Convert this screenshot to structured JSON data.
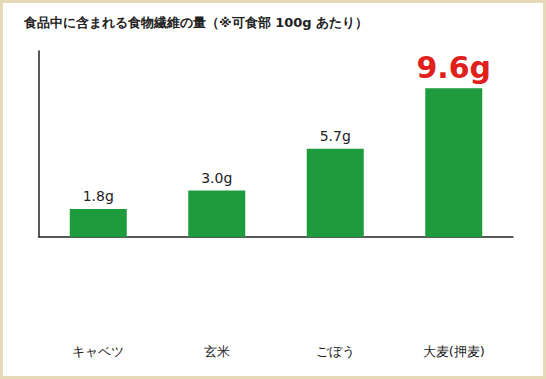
{
  "chart_data": {
    "type": "bar",
    "title": "食品中に含まれる食物繊維の量（※可食部 100g あたり）",
    "categories": [
      "キャベツ",
      "玄米",
      "ごぼう",
      "大麦(押麦)"
    ],
    "values": [
      1.8,
      3.0,
      5.7,
      9.6
    ],
    "value_labels": [
      "1.8g",
      "3.0g",
      "5.7g",
      "9.6g"
    ],
    "color": "#1e9b3c",
    "ylim": [
      0,
      12
    ],
    "grid": false,
    "data_labels": true,
    "tick_labels": "x"
  }
}
